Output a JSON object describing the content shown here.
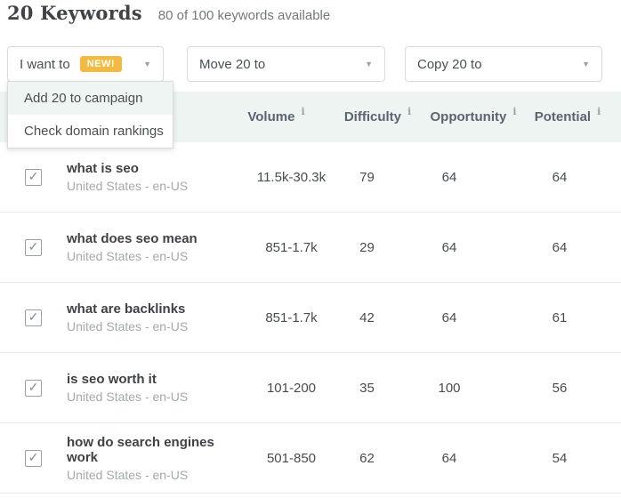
{
  "header": {
    "title": "20 Keywords",
    "subtitle": "80 of 100 keywords available"
  },
  "toolbar": {
    "want": {
      "label": "I want to",
      "badge": "NEW!"
    },
    "move": {
      "label": "Move 20 to"
    },
    "copy": {
      "label": "Copy 20 to"
    }
  },
  "menu": {
    "items": [
      {
        "label": "Add 20 to campaign"
      },
      {
        "label": "Check domain rankings"
      }
    ]
  },
  "table": {
    "columns": [
      {
        "label": "Volume"
      },
      {
        "label": "Difficulty"
      },
      {
        "label": "Opportunity"
      },
      {
        "label": "Potential"
      }
    ],
    "rows": [
      {
        "keyword": "what is seo",
        "locale": "United States - en-US",
        "volume": "11.5k-30.3k",
        "difficulty": "79",
        "opportunity": "64",
        "potential": "64",
        "checked": true
      },
      {
        "keyword": "what does seo mean",
        "locale": "United States - en-US",
        "volume": "851-1.7k",
        "difficulty": "29",
        "opportunity": "64",
        "potential": "64",
        "checked": true
      },
      {
        "keyword": "what are backlinks",
        "locale": "United States - en-US",
        "volume": "851-1.7k",
        "difficulty": "42",
        "opportunity": "64",
        "potential": "61",
        "checked": true
      },
      {
        "keyword": "is seo worth it",
        "locale": "United States - en-US",
        "volume": "101-200",
        "difficulty": "35",
        "opportunity": "100",
        "potential": "56",
        "checked": true
      },
      {
        "keyword": "how do search engines work",
        "locale": "United States - en-US",
        "volume": "501-850",
        "difficulty": "62",
        "opportunity": "64",
        "potential": "54",
        "checked": true
      }
    ]
  },
  "icons": {
    "caret_down": "▼",
    "info": "i",
    "check": "✓"
  },
  "colors": {
    "header_band": "#edf4f2",
    "menu_highlight": "#eef5f3",
    "badge": "#f2ba41",
    "border": "#d8dbdc"
  }
}
